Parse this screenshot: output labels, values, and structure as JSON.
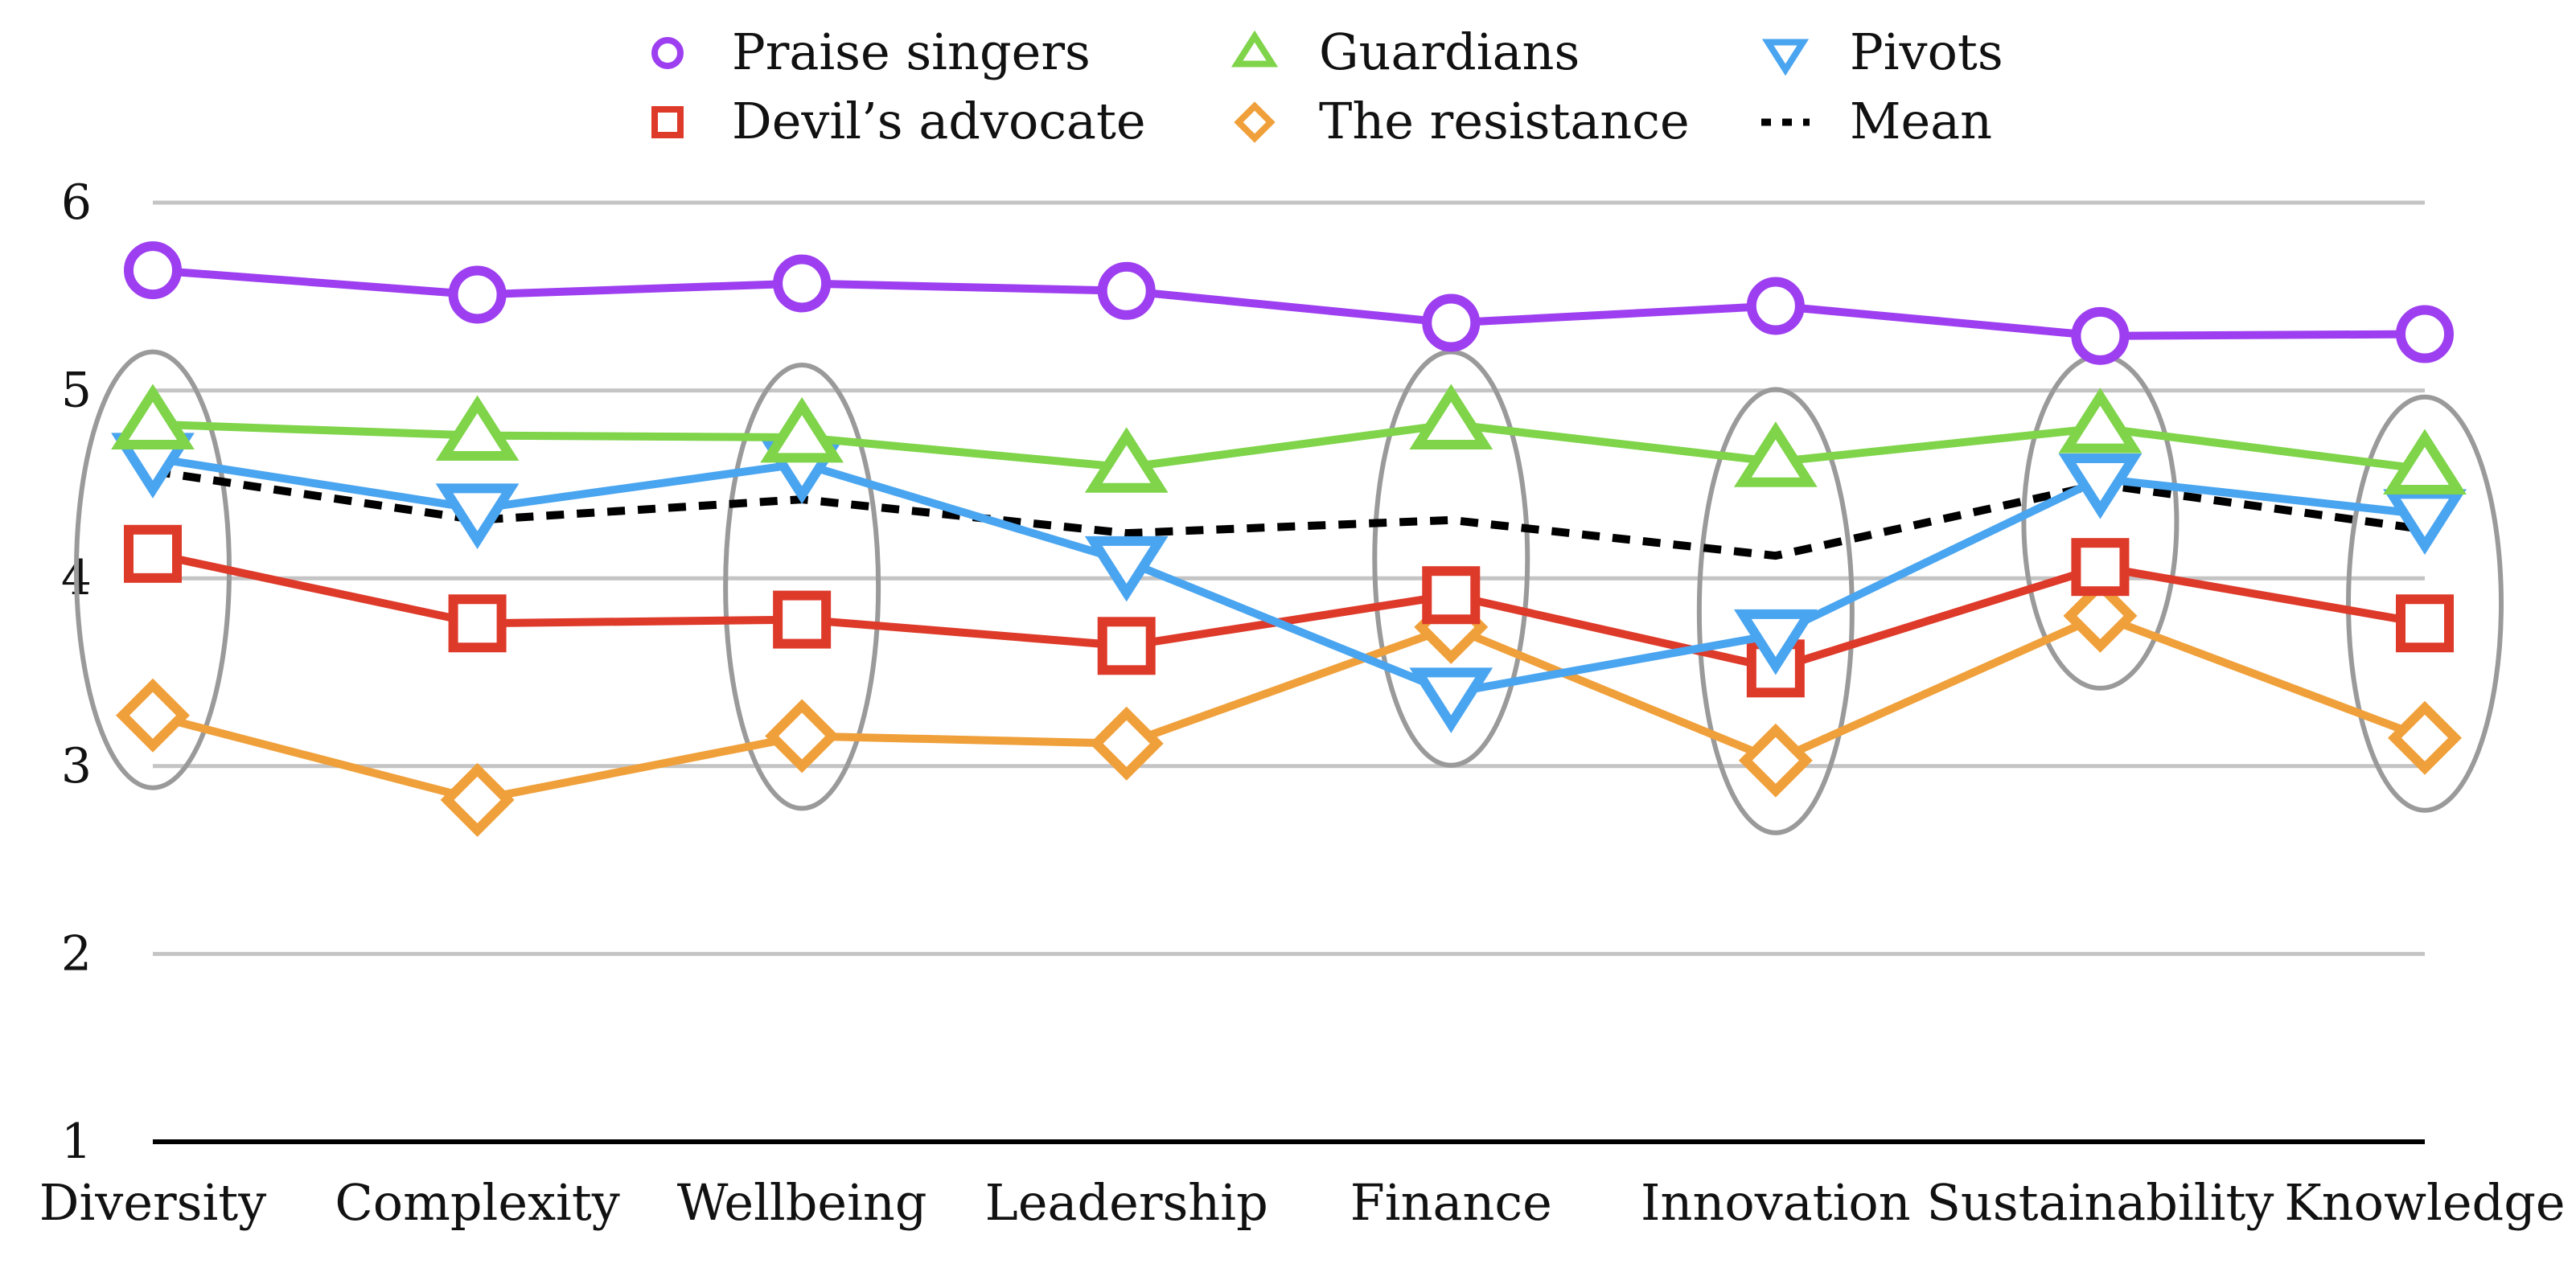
{
  "chart_data": {
    "type": "line",
    "categories": [
      "Diversity",
      "Complexity",
      "Wellbeing",
      "Leadership",
      "Finance",
      "Innovation",
      "Sustainability",
      "Knowledge"
    ],
    "ylim": [
      1,
      6
    ],
    "yticks": [
      "1",
      "2",
      "3",
      "4",
      "5",
      "6"
    ],
    "grid": true,
    "legend_position": "top",
    "series": [
      {
        "name": "Praise singers",
        "color": "#9d3ff0",
        "marker": "circle",
        "values": [
          5.64,
          5.51,
          5.57,
          5.53,
          5.36,
          5.45,
          5.29,
          5.3
        ]
      },
      {
        "name": "Guardians",
        "color": "#7fd44a",
        "marker": "triangle-up",
        "values": [
          4.82,
          4.76,
          4.75,
          4.59,
          4.82,
          4.62,
          4.8,
          4.58
        ]
      },
      {
        "name": "Pivots",
        "color": "#4aa5f0",
        "marker": "triangle-down",
        "values": [
          4.64,
          4.37,
          4.61,
          4.09,
          3.39,
          3.7,
          4.53,
          4.34
        ]
      },
      {
        "name": "Devil’s advocate",
        "color": "#de3a2a",
        "marker": "square",
        "values": [
          4.13,
          3.76,
          3.78,
          3.64,
          3.91,
          3.52,
          4.06,
          3.76
        ]
      },
      {
        "name": "The resistance",
        "color": "#f0a03a",
        "marker": "diamond",
        "values": [
          3.27,
          2.82,
          3.16,
          3.12,
          3.74,
          3.03,
          3.8,
          3.15
        ]
      },
      {
        "name": "Mean",
        "color": "#000000",
        "marker": "none",
        "dashed": true,
        "values": [
          4.57,
          4.31,
          4.42,
          4.24,
          4.31,
          4.12,
          4.5,
          4.26
        ]
      }
    ],
    "highlights": [
      "Diversity",
      "Wellbeing",
      "Finance",
      "Innovation",
      "Sustainability",
      "Knowledge"
    ]
  }
}
